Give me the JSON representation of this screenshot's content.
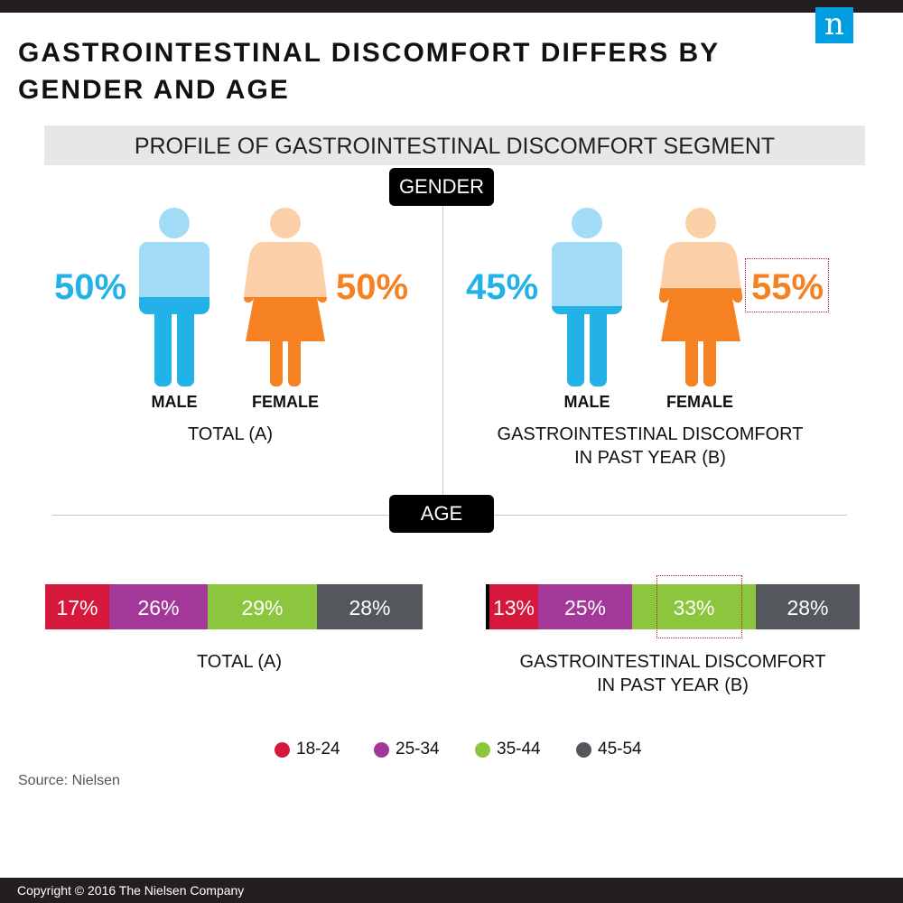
{
  "header": {
    "title_line1": "GASTROINTESTINAL DISCOMFORT DIFFERS BY",
    "title_line2": "GENDER AND AGE",
    "logo_text": "n",
    "subheading": "PROFILE OF GASTROINTESTINAL DISCOMFORT SEGMENT"
  },
  "sections": {
    "gender": "GENDER",
    "age": "AGE"
  },
  "colors": {
    "male": "#22b2e7",
    "male_light": "#a3dcf6",
    "female": "#f68121",
    "female_light": "#fbd0a9",
    "age_18_24": "#d7183d",
    "age_25_34": "#a3389a",
    "age_35_44": "#8cc63f",
    "age_45_54": "#54575c"
  },
  "chart_data": [
    {
      "type": "bar",
      "chart": "gender",
      "categories": [
        "MALE",
        "FEMALE"
      ],
      "groups": [
        {
          "label": "TOTAL (A)",
          "values": [
            50,
            50
          ],
          "display": [
            "50%",
            "50%"
          ]
        },
        {
          "label_line1": "GASTROINTESTINAL DISCOMFORT",
          "label_line2": "IN PAST YEAR (B)",
          "values": [
            45,
            55
          ],
          "display": [
            "45%",
            "55%"
          ],
          "highlight": "FEMALE"
        }
      ]
    },
    {
      "type": "bar",
      "chart": "age",
      "stacked": true,
      "legend_position": "bottom",
      "legend": [
        "18-24",
        "25-34",
        "35-44",
        "45-54"
      ],
      "bars": [
        {
          "label": "TOTAL (A)",
          "values": [
            17,
            26,
            29,
            28
          ],
          "display": [
            "17%",
            "26%",
            "29%",
            "28%"
          ]
        },
        {
          "label_line1": "GASTROINTESTINAL DISCOMFORT",
          "label_line2": "IN PAST YEAR (B)",
          "values": [
            13,
            25,
            33,
            28
          ],
          "display": [
            "13%",
            "25%",
            "33%",
            "28%"
          ],
          "highlight": "35-44"
        }
      ]
    }
  ],
  "footer": {
    "source": "Source: Nielsen",
    "copyright": "Copyright © 2016 The Nielsen Company"
  }
}
